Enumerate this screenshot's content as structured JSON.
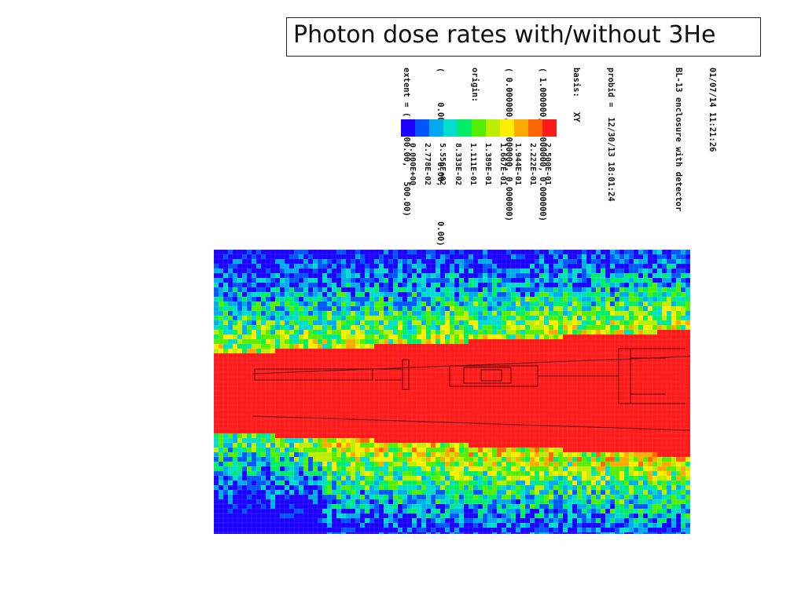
{
  "slide": {
    "title": "Photon dose rates with/without 3He"
  },
  "plot_header": {
    "lines": [
      "01/07/14 11:21:26",
      "BL-13 enclosure with detector",
      "",
      "probid =  12/30/13 18:01:24",
      "basis:   XY",
      "( 1.000000, 0.000000, 0.000000)",
      "( 0.000000, 1.000000, 0.000000)",
      "origin:",
      "(      0.00,       0.00,       0.00)",
      "extent = (   500.00,   500.00)"
    ]
  },
  "chart_data": {
    "type": "heatmap",
    "title": "",
    "xlabel": "",
    "ylabel": "",
    "legend": {
      "placement": "top, rotated 90 degrees",
      "colors": [
        "#1c00ff",
        "#0055ff",
        "#00aaee",
        "#00ddcc",
        "#00ee66",
        "#55ee00",
        "#bbee00",
        "#ffee00",
        "#ffaa00",
        "#ff6600",
        "#ff1a1a"
      ],
      "tick_labels": [
        "2.500E-01",
        "2.222E-01",
        "1.944E-01",
        "1.667E-01",
        "1.389E-01",
        "1.111E-01",
        "8.333E-02",
        "5.556E-02",
        "2.778E-02",
        "0.000E+00"
      ],
      "tick_values": [
        0.25,
        0.2222,
        0.1944,
        0.1667,
        0.1389,
        0.1111,
        0.08333,
        0.05556,
        0.02778,
        0.0
      ],
      "range": [
        0.0,
        0.25
      ]
    },
    "basis": "XY",
    "origin": [
      0.0,
      0.0,
      0.0
    ],
    "extent": [
      500.0,
      500.0
    ],
    "description_values": {
      "beam_region": "high (red, >= 2.5E-01)",
      "background": "low to mid (blue-cyan-green)"
    }
  }
}
